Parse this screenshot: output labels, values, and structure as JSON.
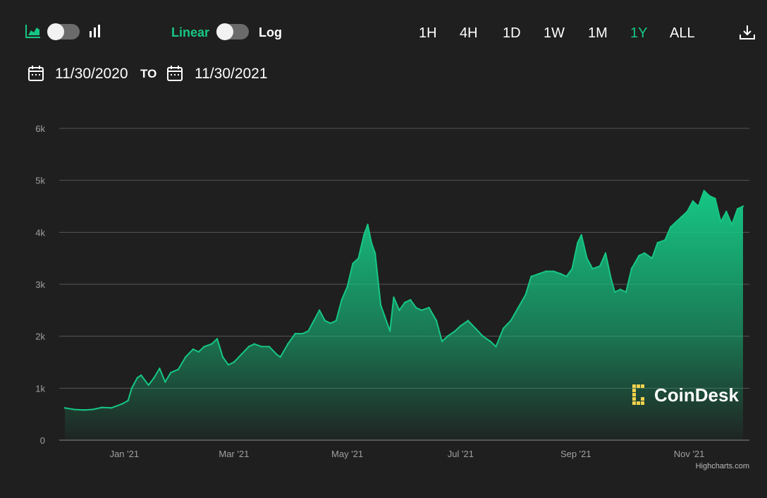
{
  "toolbar": {
    "chart_type_area_icon": "area-chart-icon",
    "chart_type_bar_icon": "bar-chart-icon",
    "linear_label": "Linear",
    "log_label": "Log",
    "ranges": [
      "1H",
      "4H",
      "1D",
      "1W",
      "1M",
      "1Y",
      "ALL"
    ],
    "active_range": "1Y",
    "download_icon": "download-icon"
  },
  "dates": {
    "from": "11/30/2020",
    "to_label": "TO",
    "to": "11/30/2021"
  },
  "colors": {
    "accent": "#16c784",
    "background": "#1f1f1f",
    "grid": "#555555",
    "axis_text": "#a0a0a0"
  },
  "watermark": "CoinDesk",
  "credit": "Highcharts.com",
  "chart_data": {
    "type": "area",
    "x_start": "2020-11-30",
    "x_end": "2021-11-30",
    "ylim": [
      0,
      6000
    ],
    "y_ticks": [
      0,
      1000,
      2000,
      3000,
      4000,
      5000,
      6000
    ],
    "y_tick_labels": [
      "0",
      "1k",
      "2k",
      "3k",
      "4k",
      "5k",
      "6k"
    ],
    "x_ticks": [
      {
        "date": "2021-01-01",
        "label": "Jan '21"
      },
      {
        "date": "2021-03-01",
        "label": "Mar '21"
      },
      {
        "date": "2021-05-01",
        "label": "May '21"
      },
      {
        "date": "2021-07-01",
        "label": "Jul '21"
      },
      {
        "date": "2021-09-01",
        "label": "Sep '21"
      },
      {
        "date": "2021-11-01",
        "label": "Nov '21"
      }
    ],
    "grid": true,
    "series": [
      {
        "points": [
          [
            "2020-11-30",
            620
          ],
          [
            "2020-12-05",
            590
          ],
          [
            "2020-12-10",
            580
          ],
          [
            "2020-12-15",
            590
          ],
          [
            "2020-12-20",
            630
          ],
          [
            "2020-12-25",
            620
          ],
          [
            "2020-12-31",
            700
          ],
          [
            "2021-01-03",
            760
          ],
          [
            "2021-01-05",
            1000
          ],
          [
            "2021-01-08",
            1200
          ],
          [
            "2021-01-10",
            1250
          ],
          [
            "2021-01-14",
            1060
          ],
          [
            "2021-01-17",
            1200
          ],
          [
            "2021-01-20",
            1380
          ],
          [
            "2021-01-23",
            1120
          ],
          [
            "2021-01-26",
            1300
          ],
          [
            "2021-01-30",
            1360
          ],
          [
            "2021-02-03",
            1600
          ],
          [
            "2021-02-07",
            1750
          ],
          [
            "2021-02-10",
            1700
          ],
          [
            "2021-02-13",
            1800
          ],
          [
            "2021-02-17",
            1850
          ],
          [
            "2021-02-20",
            1950
          ],
          [
            "2021-02-23",
            1600
          ],
          [
            "2021-02-26",
            1450
          ],
          [
            "2021-03-01",
            1500
          ],
          [
            "2021-03-05",
            1650
          ],
          [
            "2021-03-09",
            1800
          ],
          [
            "2021-03-12",
            1850
          ],
          [
            "2021-03-16",
            1800
          ],
          [
            "2021-03-20",
            1800
          ],
          [
            "2021-03-24",
            1650
          ],
          [
            "2021-03-26",
            1600
          ],
          [
            "2021-03-30",
            1850
          ],
          [
            "2021-04-03",
            2050
          ],
          [
            "2021-04-07",
            2050
          ],
          [
            "2021-04-10",
            2100
          ],
          [
            "2021-04-13",
            2300
          ],
          [
            "2021-04-16",
            2500
          ],
          [
            "2021-04-19",
            2300
          ],
          [
            "2021-04-22",
            2250
          ],
          [
            "2021-04-25",
            2300
          ],
          [
            "2021-04-28",
            2700
          ],
          [
            "2021-05-01",
            2950
          ],
          [
            "2021-05-04",
            3400
          ],
          [
            "2021-05-07",
            3500
          ],
          [
            "2021-05-10",
            3950
          ],
          [
            "2021-05-12",
            4150
          ],
          [
            "2021-05-14",
            3800
          ],
          [
            "2021-05-16",
            3600
          ],
          [
            "2021-05-19",
            2600
          ],
          [
            "2021-05-21",
            2400
          ],
          [
            "2021-05-24",
            2100
          ],
          [
            "2021-05-26",
            2750
          ],
          [
            "2021-05-29",
            2500
          ],
          [
            "2021-06-01",
            2650
          ],
          [
            "2021-06-04",
            2700
          ],
          [
            "2021-06-07",
            2550
          ],
          [
            "2021-06-10",
            2500
          ],
          [
            "2021-06-14",
            2550
          ],
          [
            "2021-06-18",
            2300
          ],
          [
            "2021-06-21",
            1900
          ],
          [
            "2021-06-24",
            2000
          ],
          [
            "2021-06-28",
            2100
          ],
          [
            "2021-07-01",
            2200
          ],
          [
            "2021-07-05",
            2300
          ],
          [
            "2021-07-09",
            2150
          ],
          [
            "2021-07-13",
            2000
          ],
          [
            "2021-07-17",
            1900
          ],
          [
            "2021-07-20",
            1800
          ],
          [
            "2021-07-24",
            2150
          ],
          [
            "2021-07-28",
            2300
          ],
          [
            "2021-08-01",
            2550
          ],
          [
            "2021-08-05",
            2800
          ],
          [
            "2021-08-08",
            3150
          ],
          [
            "2021-08-12",
            3200
          ],
          [
            "2021-08-16",
            3250
          ],
          [
            "2021-08-20",
            3250
          ],
          [
            "2021-08-24",
            3200
          ],
          [
            "2021-08-27",
            3150
          ],
          [
            "2021-08-30",
            3300
          ],
          [
            "2021-09-02",
            3800
          ],
          [
            "2021-09-04",
            3950
          ],
          [
            "2021-09-07",
            3500
          ],
          [
            "2021-09-10",
            3300
          ],
          [
            "2021-09-14",
            3350
          ],
          [
            "2021-09-17",
            3600
          ],
          [
            "2021-09-20",
            3100
          ],
          [
            "2021-09-22",
            2850
          ],
          [
            "2021-09-25",
            2900
          ],
          [
            "2021-09-28",
            2850
          ],
          [
            "2021-10-01",
            3300
          ],
          [
            "2021-10-05",
            3550
          ],
          [
            "2021-10-08",
            3600
          ],
          [
            "2021-10-12",
            3500
          ],
          [
            "2021-10-15",
            3800
          ],
          [
            "2021-10-19",
            3850
          ],
          [
            "2021-10-22",
            4100
          ],
          [
            "2021-10-25",
            4200
          ],
          [
            "2021-10-28",
            4300
          ],
          [
            "2021-10-31",
            4400
          ],
          [
            "2021-11-03",
            4600
          ],
          [
            "2021-11-06",
            4500
          ],
          [
            "2021-11-09",
            4800
          ],
          [
            "2021-11-12",
            4700
          ],
          [
            "2021-11-15",
            4650
          ],
          [
            "2021-11-18",
            4200
          ],
          [
            "2021-11-21",
            4400
          ],
          [
            "2021-11-24",
            4150
          ],
          [
            "2021-11-27",
            4450
          ],
          [
            "2021-11-30",
            4500
          ]
        ]
      }
    ]
  }
}
